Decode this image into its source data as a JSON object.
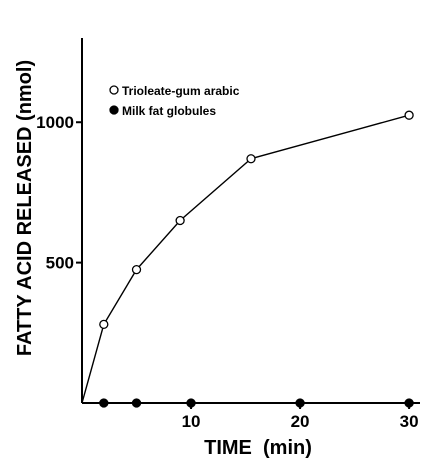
{
  "chart_data": {
    "type": "line",
    "xlabel": "TIME  (min)",
    "ylabel": "FATTY ACID RELEASED (nmol)",
    "xlim": [
      0,
      31
    ],
    "ylim": [
      0,
      1300
    ],
    "x_ticks": [
      10,
      20,
      30
    ],
    "y_ticks": [
      500,
      1000
    ],
    "x_tick_labels": [
      "10",
      "20",
      "30"
    ],
    "y_tick_labels": [
      "500",
      "1000"
    ],
    "grid": false,
    "legend_position": "top-left",
    "series": [
      {
        "name": "Trioleate-gum arabic",
        "marker": "open-circle",
        "line": true,
        "x": [
          0,
          2,
          5,
          9,
          15.5,
          30
        ],
        "y": [
          0,
          280,
          475,
          650,
          870,
          1025
        ],
        "marker_shown": [
          false,
          true,
          true,
          true,
          true,
          true
        ]
      },
      {
        "name": "Milk fat globules",
        "marker": "filled-circle",
        "line": false,
        "x": [
          2,
          5,
          10,
          20,
          30
        ],
        "y": [
          0,
          0,
          0,
          0,
          0
        ]
      }
    ]
  }
}
